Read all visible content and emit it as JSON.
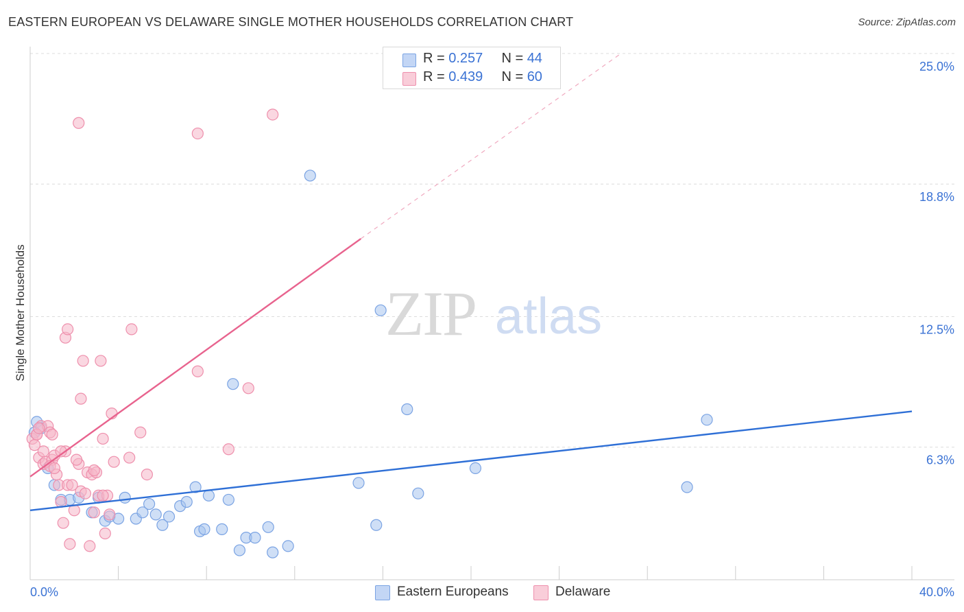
{
  "header": {
    "title": "EASTERN EUROPEAN VS DELAWARE SINGLE MOTHER HOUSEHOLDS CORRELATION CHART",
    "source": "Source: ZipAtlas.com"
  },
  "stats": [
    {
      "r_label": "R = ",
      "r_value": "0.257",
      "n_label": "N = ",
      "n_value": "44",
      "color": "#a8c4ef"
    },
    {
      "r_label": "R = ",
      "r_value": "0.439",
      "n_label": "N = ",
      "n_value": "60",
      "color": "#f5b6c9"
    }
  ],
  "legend": [
    {
      "label": "Eastern Europeans",
      "color": "#a8c4ef"
    },
    {
      "label": "Delaware",
      "color": "#f5b6c9"
    }
  ],
  "watermark": {
    "zip": "ZIP",
    "atlas": "atlas"
  },
  "chart_data": {
    "type": "scatter",
    "title": "EASTERN EUROPEAN VS DELAWARE SINGLE MOTHER HOUSEHOLDS CORRELATION CHART",
    "ylabel": "Single Mother Households",
    "xlim": [
      0,
      40
    ],
    "ylim": [
      0,
      25.0
    ],
    "y_ticks": [
      6.3,
      12.5,
      18.8,
      25.0
    ],
    "y_tick_labels": [
      "6.3%",
      "12.5%",
      "18.8%",
      "25.0%"
    ],
    "x_tick_labels": [
      "0.0%",
      "40.0%"
    ],
    "grid": true,
    "legend_position": "bottom-center",
    "series": [
      {
        "name": "Eastern Europeans",
        "color": "#a8c4ef",
        "edge": "#7aa3e3",
        "line_color": "#2e6fd6",
        "trend": [
          [
            0,
            3.3
          ],
          [
            40,
            8.0
          ]
        ],
        "points": [
          [
            0.3,
            7.5
          ],
          [
            0.5,
            7.2
          ],
          [
            0.8,
            5.3
          ],
          [
            1.1,
            4.5
          ],
          [
            1.4,
            3.8
          ],
          [
            1.8,
            3.8
          ],
          [
            2.2,
            3.9
          ],
          [
            2.8,
            3.2
          ],
          [
            3.1,
            3.9
          ],
          [
            3.4,
            2.8
          ],
          [
            3.6,
            3.0
          ],
          [
            4.0,
            2.9
          ],
          [
            4.3,
            3.9
          ],
          [
            4.8,
            2.9
          ],
          [
            5.1,
            3.2
          ],
          [
            5.4,
            3.6
          ],
          [
            5.7,
            3.1
          ],
          [
            6.0,
            2.6
          ],
          [
            6.3,
            3.0
          ],
          [
            6.8,
            3.5
          ],
          [
            7.1,
            3.7
          ],
          [
            7.5,
            4.4
          ],
          [
            7.7,
            2.3
          ],
          [
            7.9,
            2.4
          ],
          [
            8.1,
            4.0
          ],
          [
            8.7,
            2.4
          ],
          [
            9.0,
            3.8
          ],
          [
            9.2,
            9.3
          ],
          [
            9.5,
            1.4
          ],
          [
            9.8,
            2.0
          ],
          [
            10.2,
            2.0
          ],
          [
            10.8,
            2.5
          ],
          [
            11.0,
            1.3
          ],
          [
            11.7,
            1.6
          ],
          [
            12.7,
            19.2
          ],
          [
            14.9,
            4.6
          ],
          [
            15.7,
            2.6
          ],
          [
            15.9,
            12.8
          ],
          [
            17.1,
            8.1
          ],
          [
            17.6,
            4.1
          ],
          [
            20.2,
            5.3
          ],
          [
            29.8,
            4.4
          ],
          [
            30.7,
            7.6
          ],
          [
            0.2,
            7.0
          ]
        ]
      },
      {
        "name": "Delaware",
        "color": "#f5b6c9",
        "edge": "#ee8fac",
        "line_color": "#e8638e",
        "trend": [
          [
            0,
            4.9
          ],
          [
            15.0,
            16.2
          ]
        ],
        "trend_ext": [
          [
            15.0,
            16.2
          ],
          [
            26.8,
            25.0
          ]
        ],
        "points": [
          [
            0.1,
            6.7
          ],
          [
            0.2,
            6.4
          ],
          [
            0.3,
            6.9
          ],
          [
            0.4,
            5.8
          ],
          [
            0.5,
            7.3
          ],
          [
            0.6,
            5.5
          ],
          [
            0.7,
            5.6
          ],
          [
            0.8,
            7.3
          ],
          [
            0.9,
            7.0
          ],
          [
            1.0,
            5.7
          ],
          [
            1.1,
            5.9
          ],
          [
            1.2,
            5.0
          ],
          [
            1.3,
            4.5
          ],
          [
            1.4,
            3.7
          ],
          [
            1.5,
            2.7
          ],
          [
            1.6,
            11.5
          ],
          [
            1.7,
            4.5
          ],
          [
            1.6,
            6.1
          ],
          [
            1.7,
            11.9
          ],
          [
            1.8,
            1.7
          ],
          [
            1.9,
            4.5
          ],
          [
            2.0,
            3.3
          ],
          [
            2.2,
            21.7
          ],
          [
            2.3,
            8.6
          ],
          [
            2.2,
            5.5
          ],
          [
            2.3,
            4.2
          ],
          [
            2.4,
            10.4
          ],
          [
            2.5,
            4.1
          ],
          [
            2.6,
            5.1
          ],
          [
            2.7,
            1.6
          ],
          [
            2.8,
            5.0
          ],
          [
            2.9,
            3.2
          ],
          [
            3.0,
            5.1
          ],
          [
            3.1,
            4.0
          ],
          [
            3.2,
            10.4
          ],
          [
            3.3,
            6.7
          ],
          [
            3.4,
            2.2
          ],
          [
            3.5,
            4.0
          ],
          [
            3.6,
            3.1
          ],
          [
            3.7,
            7.9
          ],
          [
            3.8,
            5.6
          ],
          [
            4.5,
            5.8
          ],
          [
            4.6,
            11.9
          ],
          [
            5.0,
            7.0
          ],
          [
            5.3,
            5.0
          ],
          [
            7.6,
            21.2
          ],
          [
            7.6,
            9.9
          ],
          [
            9.0,
            6.2
          ],
          [
            9.9,
            9.1
          ],
          [
            11.0,
            22.1
          ],
          [
            0.3,
            6.9
          ],
          [
            0.4,
            7.2
          ],
          [
            0.6,
            6.1
          ],
          [
            0.9,
            5.4
          ],
          [
            1.0,
            6.9
          ],
          [
            1.1,
            5.3
          ],
          [
            1.4,
            6.1
          ],
          [
            2.1,
            5.7
          ],
          [
            2.9,
            5.2
          ],
          [
            3.3,
            4.0
          ]
        ]
      }
    ]
  }
}
